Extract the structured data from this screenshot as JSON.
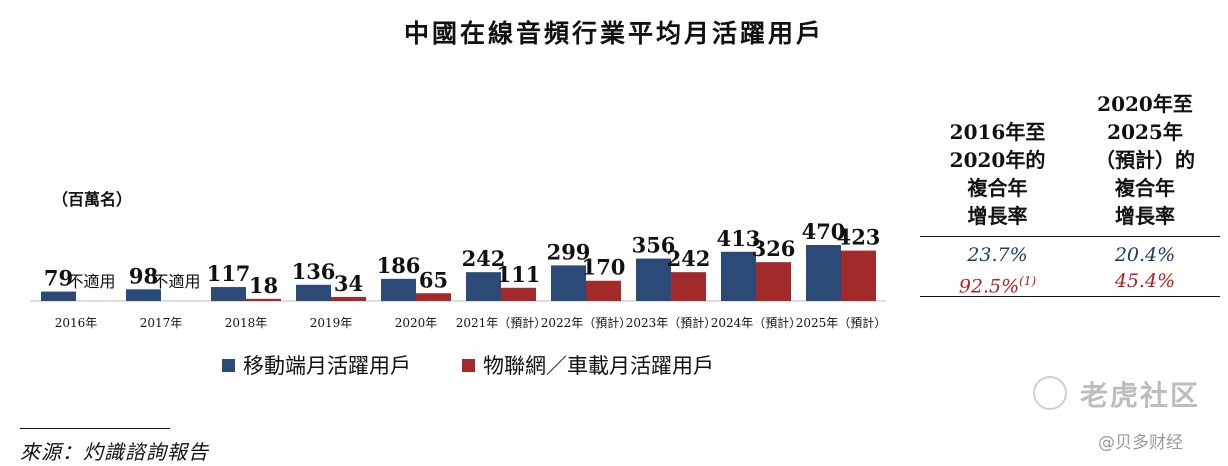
{
  "title": "中國在線音頻行業平均月活躍用戶",
  "unit_label": "（百萬名）",
  "legend": {
    "series1": "移動端月活躍用戶",
    "series2": "物聯網／車載月活躍用戶"
  },
  "colors": {
    "series1": "#2b4a78",
    "series2": "#a32a2a",
    "ratio_red": "#b22222",
    "ratio_blue": "#1f3b66"
  },
  "cagr_table": {
    "col1_header": [
      "2016年至",
      "2020年的",
      "複合年",
      "增長率"
    ],
    "col2_header": [
      "2020年至",
      "2025年",
      "（預計）的",
      "複合年",
      "增長率"
    ],
    "row_mobile": {
      "col1": "23.7%",
      "col2": "20.4%"
    },
    "row_iot": {
      "col1": "92.5%",
      "col1_note": "(1)",
      "col2": "45.4%"
    }
  },
  "source": "來源：灼識諮詢報告",
  "watermark": {
    "brand": "老虎社区",
    "credit": "@贝多财经"
  },
  "chart_data": {
    "type": "bar",
    "title": "中國在線音頻行業平均月活躍用戶",
    "ylabel": "（百萬名）",
    "xlabel": "",
    "ylim": [
      0,
      500
    ],
    "categories": [
      "2016年",
      "2017年",
      "2018年",
      "2019年",
      "2020年",
      "2021年（預計）",
      "2022年（預計）",
      "2023年（預計）",
      "2024年（預計）",
      "2025年（預計）"
    ],
    "series": [
      {
        "name": "移動端月活躍用戶",
        "values": [
          79,
          98,
          117,
          136,
          186,
          242,
          299,
          356,
          413,
          470
        ],
        "labels": [
          "79",
          "98",
          "117",
          "136",
          "186",
          "242",
          "299",
          "356",
          "413",
          "470"
        ]
      },
      {
        "name": "物聯網／車載月活躍用戶",
        "values": [
          null,
          null,
          18,
          34,
          65,
          111,
          170,
          242,
          326,
          423
        ],
        "labels": [
          "不適用",
          "不適用",
          "18",
          "34",
          "65",
          "111",
          "170",
          "242",
          "326",
          "423"
        ]
      }
    ]
  }
}
